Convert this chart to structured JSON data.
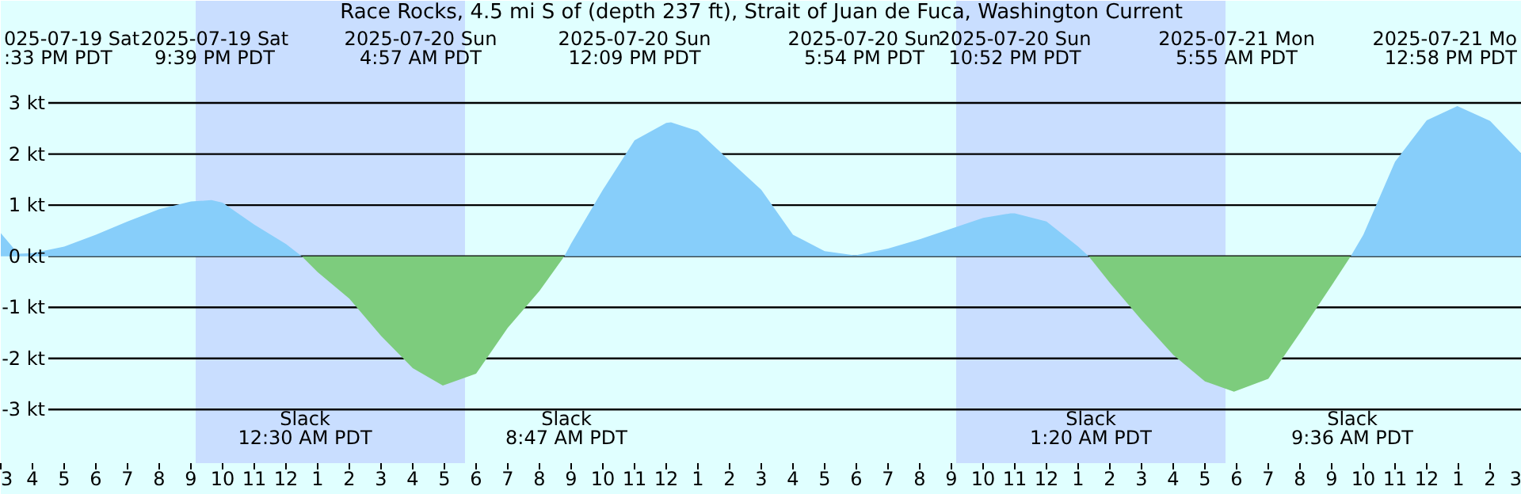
{
  "chart_data": {
    "type": "area",
    "title": "Race Rocks, 4.5 mi S of (depth 237 ft), Strait of Juan de Fuca, Washington Current",
    "series": [
      {
        "color": "#87cefa",
        "x": [
          "2025-07-19T15:00",
          "2025-07-19T15:33",
          "2025-07-19T16:00",
          "2025-07-19T17:00",
          "2025-07-19T18:00",
          "2025-07-19T19:00",
          "2025-07-19T20:00",
          "2025-07-19T21:00",
          "2025-07-19T21:39",
          "2025-07-19T22:00",
          "2025-07-19T23:00",
          "2025-07-20T00:00",
          "2025-07-20T00:30",
          null,
          "2025-07-20T08:47",
          "2025-07-20T09:00",
          "2025-07-20T10:00",
          "2025-07-20T11:00",
          "2025-07-20T12:00",
          "2025-07-20T12:09",
          "2025-07-20T13:00",
          "2025-07-20T14:00",
          "2025-07-20T15:00",
          "2025-07-20T16:00",
          "2025-07-20T17:00",
          "2025-07-20T17:54",
          "2025-07-20T18:00",
          "2025-07-20T19:00",
          "2025-07-20T20:00",
          "2025-07-20T21:00",
          "2025-07-20T22:00",
          "2025-07-20T22:52",
          "2025-07-20T23:00",
          "2025-07-21T00:00",
          "2025-07-21T01:00",
          "2025-07-21T01:20",
          null,
          "2025-07-21T09:36",
          "2025-07-21T10:00",
          "2025-07-21T11:00",
          "2025-07-21T12:00",
          "2025-07-21T12:58",
          "2025-07-21T14:00",
          "2025-07-21T15:00"
        ],
        "values": [
          0.45,
          0.05,
          0.06,
          0.19,
          0.42,
          0.68,
          0.92,
          1.07,
          1.1,
          1.05,
          0.62,
          0.24,
          0,
          null,
          0,
          0.25,
          1.3,
          2.27,
          2.61,
          2.62,
          2.45,
          1.87,
          1.3,
          0.42,
          0.1,
          0.02,
          0.02,
          0.15,
          0.33,
          0.54,
          0.75,
          0.84,
          0.84,
          0.68,
          0.19,
          0,
          null,
          0,
          0.42,
          1.85,
          2.66,
          2.94,
          2.65,
          2.0
        ]
      },
      {
        "color": "#7dcc7d",
        "x": [
          "2025-07-20T00:30",
          "2025-07-20T01:00",
          "2025-07-20T02:00",
          "2025-07-20T03:00",
          "2025-07-20T04:00",
          "2025-07-20T04:57",
          "2025-07-20T06:00",
          "2025-07-20T07:00",
          "2025-07-20T08:00",
          "2025-07-20T08:47",
          null,
          "2025-07-21T01:20",
          "2025-07-21T02:00",
          "2025-07-21T03:00",
          "2025-07-21T04:00",
          "2025-07-21T05:00",
          "2025-07-21T05:55",
          "2025-07-21T07:00",
          "2025-07-21T08:00",
          "2025-07-21T09:00",
          "2025-07-21T09:36"
        ],
        "values": [
          0,
          -0.31,
          -0.83,
          -1.56,
          -2.19,
          -2.53,
          -2.3,
          -1.4,
          -0.68,
          0,
          null,
          0,
          -0.52,
          -1.25,
          -1.93,
          -2.45,
          -2.65,
          -2.4,
          -1.5,
          -0.57,
          0
        ]
      }
    ],
    "xlim": [
      "2025-07-19T15:00",
      "2025-07-21T15:00"
    ],
    "xticks": [
      {
        "value": "2025-07-19T15:00",
        "label": "3"
      },
      {
        "value": "2025-07-19T16:00",
        "label": "4"
      },
      {
        "value": "2025-07-19T17:00",
        "label": "5"
      },
      {
        "value": "2025-07-19T18:00",
        "label": "6"
      },
      {
        "value": "2025-07-19T19:00",
        "label": "7"
      },
      {
        "value": "2025-07-19T20:00",
        "label": "8"
      },
      {
        "value": "2025-07-19T21:00",
        "label": "9"
      },
      {
        "value": "2025-07-19T22:00",
        "label": "10"
      },
      {
        "value": "2025-07-19T23:00",
        "label": "11"
      },
      {
        "value": "2025-07-20T00:00",
        "label": "12"
      },
      {
        "value": "2025-07-20T01:00",
        "label": "1"
      },
      {
        "value": "2025-07-20T02:00",
        "label": "2"
      },
      {
        "value": "2025-07-20T03:00",
        "label": "3"
      },
      {
        "value": "2025-07-20T04:00",
        "label": "4"
      },
      {
        "value": "2025-07-20T05:00",
        "label": "5"
      },
      {
        "value": "2025-07-20T06:00",
        "label": "6"
      },
      {
        "value": "2025-07-20T07:00",
        "label": "7"
      },
      {
        "value": "2025-07-20T08:00",
        "label": "8"
      },
      {
        "value": "2025-07-20T09:00",
        "label": "9"
      },
      {
        "value": "2025-07-20T10:00",
        "label": "10"
      },
      {
        "value": "2025-07-20T11:00",
        "label": "11"
      },
      {
        "value": "2025-07-20T12:00",
        "label": "12"
      },
      {
        "value": "2025-07-20T13:00",
        "label": "1"
      },
      {
        "value": "2025-07-20T14:00",
        "label": "2"
      },
      {
        "value": "2025-07-20T15:00",
        "label": "3"
      },
      {
        "value": "2025-07-20T16:00",
        "label": "4"
      },
      {
        "value": "2025-07-20T17:00",
        "label": "5"
      },
      {
        "value": "2025-07-20T18:00",
        "label": "6"
      },
      {
        "value": "2025-07-20T19:00",
        "label": "7"
      },
      {
        "value": "2025-07-20T20:00",
        "label": "8"
      },
      {
        "value": "2025-07-20T21:00",
        "label": "9"
      },
      {
        "value": "2025-07-20T22:00",
        "label": "10"
      },
      {
        "value": "2025-07-20T23:00",
        "label": "11"
      },
      {
        "value": "2025-07-21T00:00",
        "label": "12"
      },
      {
        "value": "2025-07-21T01:00",
        "label": "1"
      },
      {
        "value": "2025-07-21T02:00",
        "label": "2"
      },
      {
        "value": "2025-07-21T03:00",
        "label": "3"
      },
      {
        "value": "2025-07-21T04:00",
        "label": "4"
      },
      {
        "value": "2025-07-21T05:00",
        "label": "5"
      },
      {
        "value": "2025-07-21T06:00",
        "label": "6"
      },
      {
        "value": "2025-07-21T07:00",
        "label": "7"
      },
      {
        "value": "2025-07-21T08:00",
        "label": "8"
      },
      {
        "value": "2025-07-21T09:00",
        "label": "9"
      },
      {
        "value": "2025-07-21T10:00",
        "label": "10"
      },
      {
        "value": "2025-07-21T11:00",
        "label": "11"
      },
      {
        "value": "2025-07-21T12:00",
        "label": "12"
      },
      {
        "value": "2025-07-21T13:00",
        "label": "1"
      },
      {
        "value": "2025-07-21T14:00",
        "label": "2"
      },
      {
        "value": "2025-07-21T15:00",
        "label": "3"
      }
    ],
    "ylim": [
      -4.05,
      5.0
    ],
    "yticks": [
      {
        "value": 3,
        "label": "3 kt"
      },
      {
        "value": 2,
        "label": "2 kt"
      },
      {
        "value": 1,
        "label": "1 kt"
      },
      {
        "value": 0,
        "label": "0 kt"
      },
      {
        "value": -1,
        "label": "-1 kt"
      },
      {
        "value": -2,
        "label": "-2 kt"
      },
      {
        "value": -3,
        "label": "-3 kt"
      }
    ],
    "grid": "y",
    "bands": [
      {
        "axis": "x",
        "from": "2025-07-19T21:09",
        "to": "2025-07-20T05:39",
        "color": "#c9deff"
      },
      {
        "axis": "x",
        "from": "2025-07-20T21:09",
        "to": "2025-07-21T05:39",
        "color": "#c9deff"
      }
    ],
    "annotations": [
      "025-07-19 Sat\n:33 PM PDT",
      "2025-07-19 Sat\n9:39 PM PDT",
      "2025-07-20 Sun\n4:57 AM PDT",
      "2025-07-20 Sun\n12:09 PM PDT",
      "2025-07-20 Sun\n5:54 PM PDT",
      "2025-07-20 Sun\n10:52 PM PDT",
      "2025-07-21 Mon\n5:55 AM PDT",
      "2025-07-21 Mo\n12:58 PM PDT",
      "Slack\n12:30 AM PDT",
      "Slack\n8:47 AM PDT",
      "Slack\n1:20 AM PDT",
      "Slack\n9:36 AM PDT"
    ]
  }
}
